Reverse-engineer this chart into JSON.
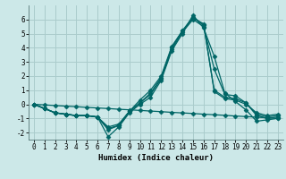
{
  "xlabel": "Humidex (Indice chaleur)",
  "background_color": "#cce8e8",
  "grid_color": "#aacccc",
  "line_color": "#006666",
  "x": [
    0,
    1,
    2,
    3,
    4,
    5,
    6,
    7,
    8,
    9,
    10,
    11,
    12,
    13,
    14,
    15,
    16,
    17,
    18,
    19,
    20,
    21,
    22,
    23
  ],
  "series": [
    [
      0.0,
      -0.3,
      -0.6,
      -0.7,
      -0.8,
      -0.8,
      -0.9,
      -2.3,
      -1.6,
      -0.6,
      0.0,
      0.5,
      1.7,
      3.8,
      5.0,
      6.3,
      5.4,
      3.4,
      0.8,
      0.2,
      -0.4,
      -1.2,
      -1.1,
      -1.0
    ],
    [
      0.0,
      -0.3,
      -0.6,
      -0.7,
      -0.8,
      -0.8,
      -0.9,
      -1.8,
      -1.5,
      -0.5,
      0.1,
      0.7,
      1.8,
      3.9,
      5.1,
      6.0,
      5.5,
      2.5,
      0.7,
      0.6,
      0.1,
      -0.8,
      -1.0,
      -0.9
    ],
    [
      0.0,
      -0.3,
      -0.6,
      -0.7,
      -0.8,
      -0.8,
      -0.9,
      -1.7,
      -1.5,
      -0.5,
      0.1,
      0.8,
      1.9,
      4.0,
      5.2,
      6.2,
      5.6,
      1.0,
      0.5,
      0.4,
      0.1,
      -0.7,
      -0.9,
      -0.8
    ],
    [
      0.0,
      -0.3,
      -0.6,
      -0.7,
      -0.8,
      -0.8,
      -0.9,
      -1.6,
      -1.4,
      -0.5,
      0.3,
      1.0,
      2.0,
      4.1,
      5.2,
      6.1,
      5.7,
      0.9,
      0.4,
      0.3,
      0.0,
      -0.6,
      -0.8,
      -0.7
    ],
    [
      0.0,
      -0.04,
      -0.09,
      -0.13,
      -0.17,
      -0.22,
      -0.26,
      -0.3,
      -0.35,
      -0.39,
      -0.43,
      -0.48,
      -0.52,
      -0.57,
      -0.61,
      -0.65,
      -0.7,
      -0.74,
      -0.78,
      -0.83,
      -0.87,
      -0.91,
      -0.96,
      -1.0
    ]
  ],
  "ylim": [
    -2.5,
    7.0
  ],
  "xlim": [
    -0.5,
    23.5
  ],
  "yticks": [
    -2,
    -1,
    0,
    1,
    2,
    3,
    4,
    5,
    6
  ],
  "xticks": [
    0,
    1,
    2,
    3,
    4,
    5,
    6,
    7,
    8,
    9,
    10,
    11,
    12,
    13,
    14,
    15,
    16,
    17,
    18,
    19,
    20,
    21,
    22,
    23
  ],
  "marker": "D",
  "markersize": 2.5,
  "linewidth": 0.9,
  "tick_labelsize": 5.5,
  "xlabel_fontsize": 6.5
}
